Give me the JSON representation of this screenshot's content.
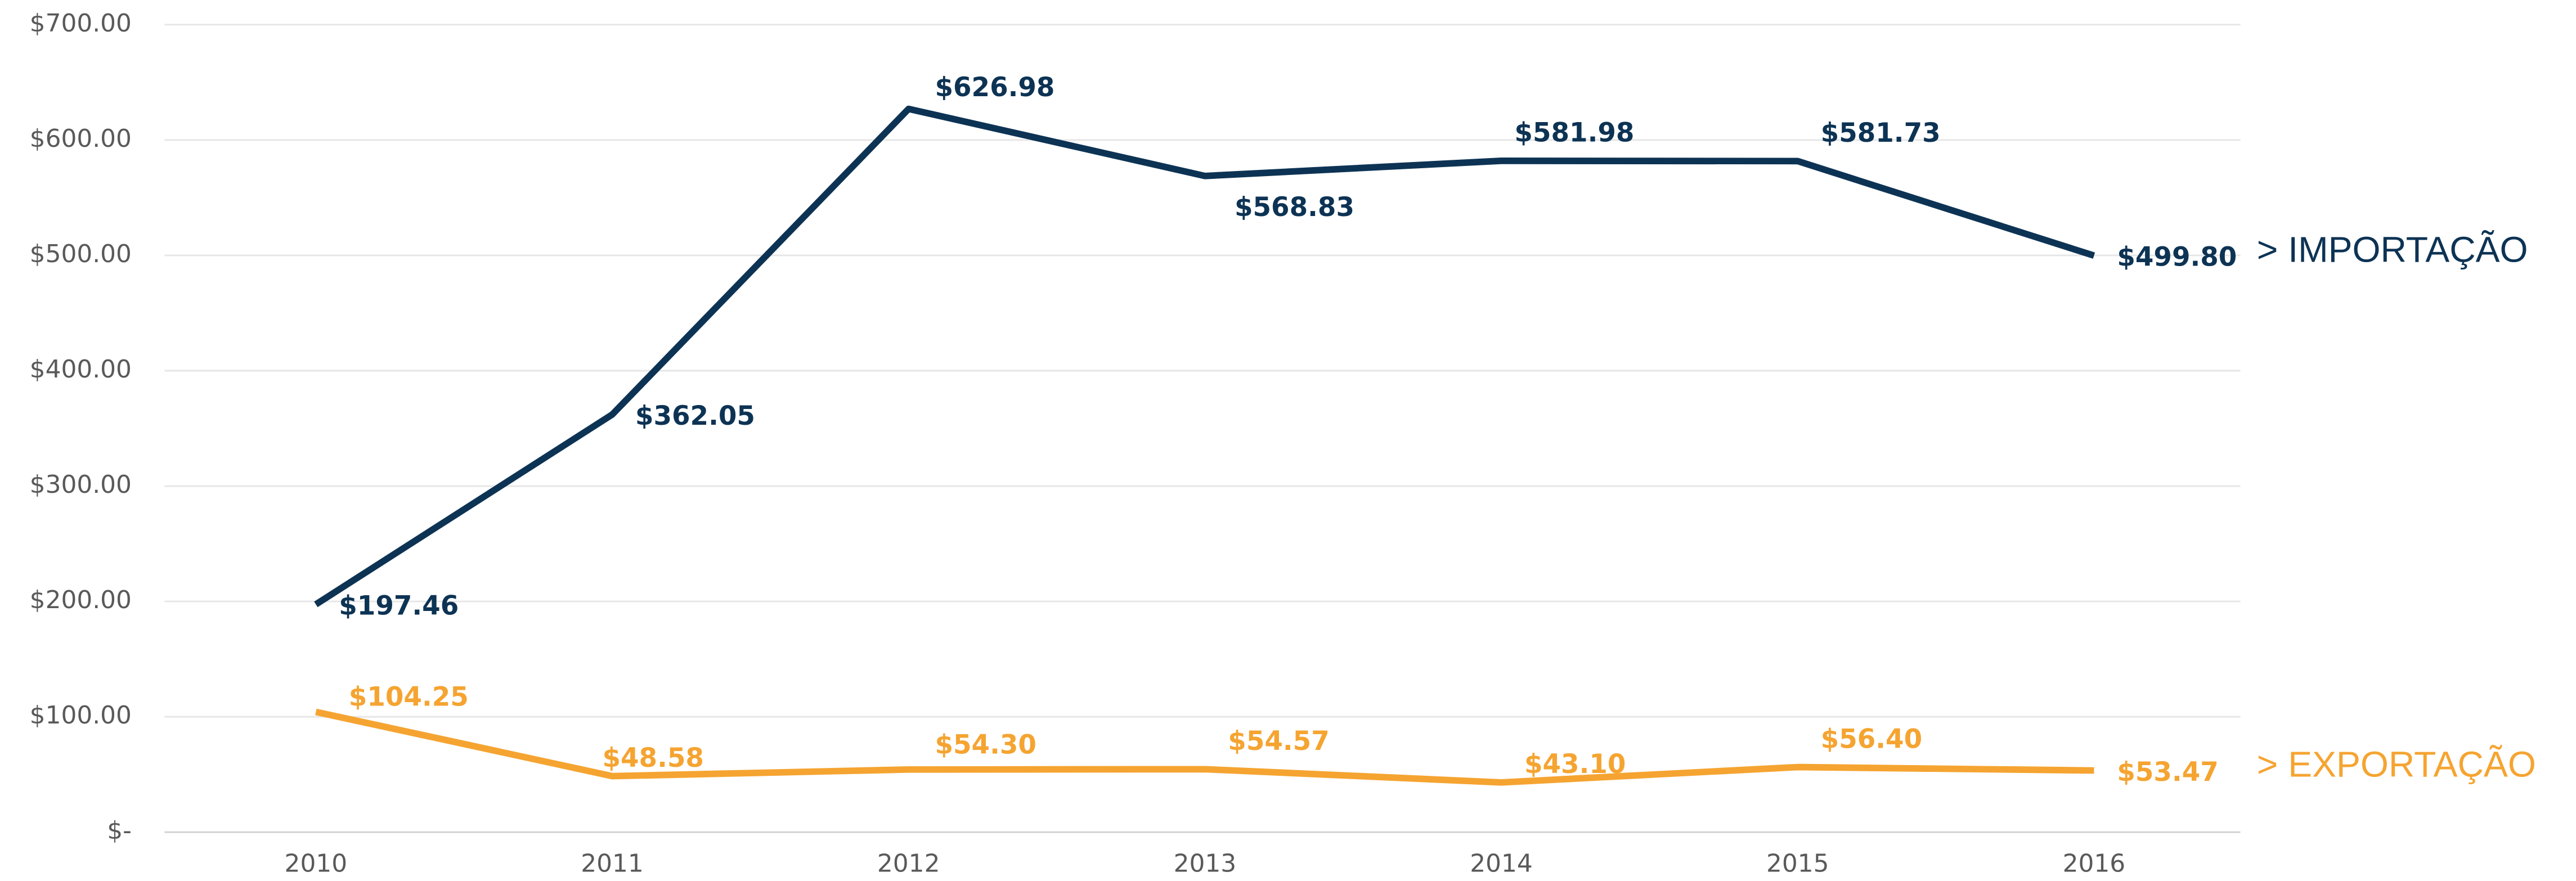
{
  "chart_data": {
    "type": "line",
    "categories": [
      "2010",
      "2011",
      "2012",
      "2013",
      "2014",
      "2015",
      "2016"
    ],
    "series": [
      {
        "name": "> IMPORTAÇÃO",
        "color": "#0d3354",
        "values": [
          197.46,
          362.05,
          626.98,
          568.83,
          581.98,
          581.73,
          499.8
        ],
        "value_labels": [
          "$197.46",
          "$362.05",
          "$626.98",
          "$568.83",
          "$581.98",
          "$581.73",
          "$499.80"
        ]
      },
      {
        "name": "> EXPORTAÇÃO",
        "color": "#f5a431",
        "values": [
          104.25,
          48.58,
          54.3,
          54.57,
          43.1,
          56.4,
          53.47
        ],
        "value_labels": [
          "$104.25",
          "$48.58",
          "$54.30",
          "$54.57",
          "$43.10",
          "$56.40",
          "$53.47"
        ]
      }
    ],
    "ylim": [
      0,
      700
    ],
    "yticks": [
      {
        "value": 0,
        "label": "$-"
      },
      {
        "value": 100,
        "label": "$100.00"
      },
      {
        "value": 200,
        "label": "$200.00"
      },
      {
        "value": 300,
        "label": "$300.00"
      },
      {
        "value": 400,
        "label": "$400.00"
      },
      {
        "value": 500,
        "label": "$500.00"
      },
      {
        "value": 600,
        "label": "$600.00"
      },
      {
        "value": 700,
        "label": "$700.00"
      }
    ],
    "grid": true
  }
}
